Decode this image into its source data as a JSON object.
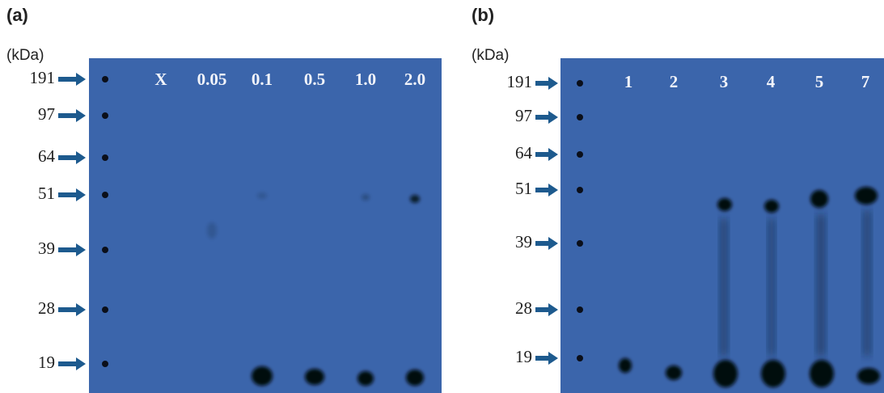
{
  "panels": [
    {
      "label": "(a)",
      "unit": "(kDa)",
      "markers": [
        "191",
        "97",
        "64",
        "51",
        "39",
        "28",
        "19"
      ],
      "lanes": [
        "X",
        "0.05",
        "0.1",
        "0.5",
        "1.0",
        "2.0"
      ]
    },
    {
      "label": "(b)",
      "unit": "(kDa)",
      "markers": [
        "191",
        "97",
        "64",
        "51",
        "39",
        "28",
        "19"
      ],
      "lanes": [
        "1",
        "2",
        "3",
        "4",
        "5",
        "7"
      ]
    }
  ]
}
